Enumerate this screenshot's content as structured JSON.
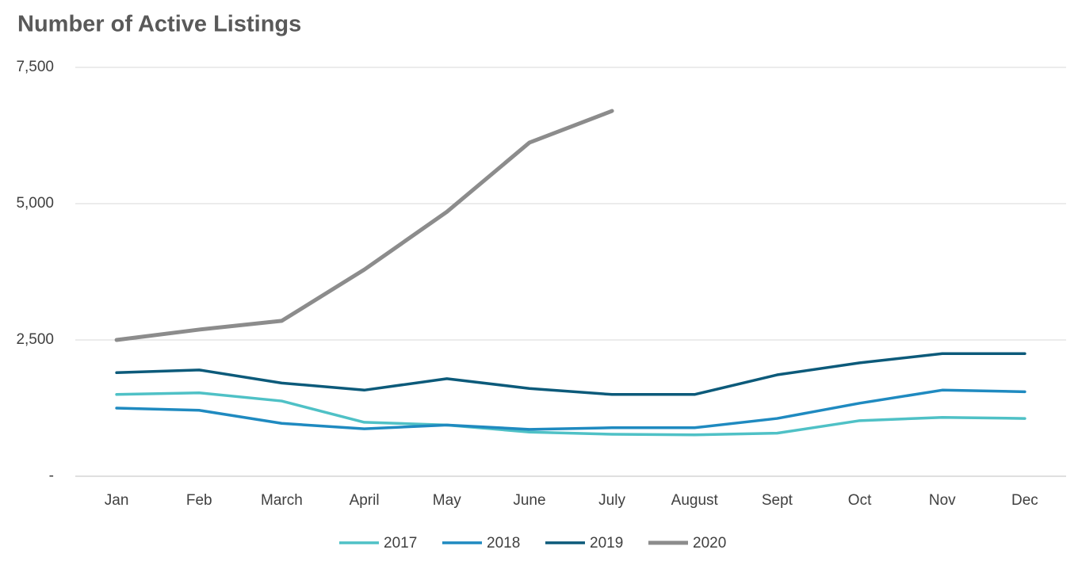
{
  "chart_data": {
    "type": "line",
    "title": "Number of Active Listings",
    "categories": [
      "Jan",
      "Feb",
      "March",
      "April",
      "May",
      "June",
      "July",
      "August",
      "Sept",
      "Oct",
      "Nov",
      "Dec"
    ],
    "series": [
      {
        "name": "2017",
        "color": "#4fc1c6",
        "values": [
          1500,
          1530,
          1380,
          990,
          940,
          810,
          770,
          760,
          790,
          1020,
          1080,
          1060
        ]
      },
      {
        "name": "2018",
        "color": "#1f8ac0",
        "values": [
          1250,
          1210,
          970,
          870,
          940,
          860,
          890,
          890,
          1060,
          1340,
          1580,
          1550
        ]
      },
      {
        "name": "2019",
        "color": "#0c5a7a",
        "values": [
          1900,
          1950,
          1710,
          1580,
          1790,
          1610,
          1500,
          1500,
          1860,
          2080,
          2250,
          2250
        ]
      },
      {
        "name": "2020",
        "color": "#8c8c8c",
        "values": [
          2500,
          2690,
          2850,
          3790,
          4850,
          6120,
          6700,
          null,
          null,
          null,
          null,
          null
        ]
      }
    ],
    "ylim": [
      0,
      7500
    ],
    "yticks": [
      {
        "value": 0,
        "label": "-"
      },
      {
        "value": 2500,
        "label": "2,500"
      },
      {
        "value": 5000,
        "label": "5,000"
      },
      {
        "value": 7500,
        "label": "7,500"
      }
    ],
    "grid": true
  }
}
